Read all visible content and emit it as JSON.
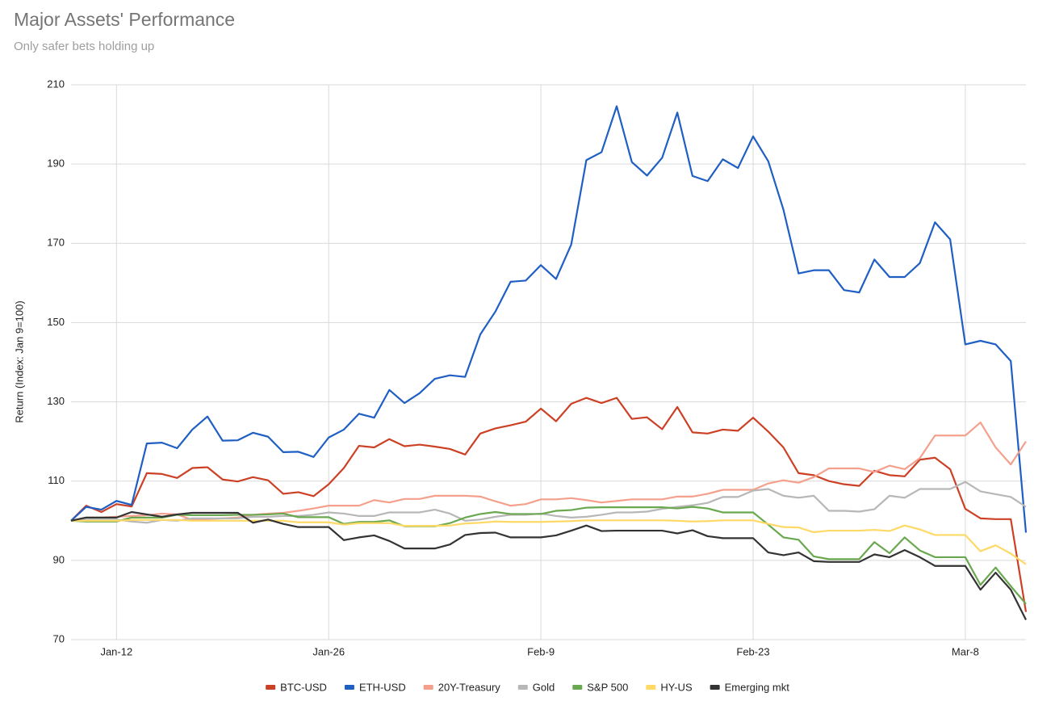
{
  "chart_data": {
    "type": "line",
    "title": "Major Assets' Performance",
    "subtitle": "Only safer bets holding up",
    "y_label": "Return (Index: Jan 9=100)",
    "categories": [
      null,
      null,
      null,
      "Jan-12",
      null,
      null,
      null,
      null,
      null,
      null,
      null,
      null,
      null,
      null,
      null,
      null,
      null,
      "Jan-26",
      null,
      null,
      null,
      null,
      null,
      null,
      null,
      null,
      null,
      null,
      null,
      null,
      null,
      "Feb-9",
      null,
      null,
      null,
      null,
      null,
      null,
      null,
      null,
      null,
      null,
      null,
      null,
      null,
      "Feb-23",
      null,
      null,
      null,
      null,
      null,
      null,
      null,
      null,
      null,
      null,
      null,
      null,
      null,
      "Mar-8",
      null,
      null,
      null,
      null
    ],
    "ylim": [
      70,
      210
    ],
    "yticks": [
      70,
      90,
      110,
      130,
      150,
      170,
      190,
      210
    ],
    "grid": true,
    "legend": "bottom",
    "series": [
      {
        "name": "BTC-USD",
        "color": "#cc4125",
        "values": [
          100,
          103.8,
          102.2,
          104.2,
          103.6,
          112,
          111.8,
          110.8,
          113.3,
          113.5,
          110.4,
          109.9,
          111,
          110.2,
          106.8,
          107.2,
          106.2,
          109.2,
          113.3,
          118.9,
          118.5,
          120.6,
          118.8,
          119.2,
          118.7,
          118.1,
          116.7,
          122,
          123.3,
          124.1,
          125,
          128.3,
          125.1,
          129.5,
          131,
          129.7,
          131,
          125.7,
          126.1,
          123.1,
          128.7,
          122.3,
          122,
          123,
          122.7,
          126,
          122.5,
          118.5,
          112,
          111.5,
          110,
          109.2,
          108.8,
          112.6,
          111.5,
          111.2,
          115.4,
          115.9,
          113,
          103,
          100.6,
          100.4,
          100.4,
          77
        ]
      },
      {
        "name": "ETH-USD",
        "color": "#1f5fc4",
        "values": [
          100,
          103.5,
          102.8,
          105,
          104,
          119.5,
          119.7,
          118.3,
          123,
          126.3,
          120.2,
          120.3,
          122.2,
          121.2,
          117.3,
          117.4,
          116.1,
          121,
          123,
          127,
          126,
          133,
          129.7,
          132.2,
          135.8,
          136.7,
          136.3,
          147,
          152.8,
          160.3,
          160.6,
          164.5,
          161,
          169.7,
          191,
          193,
          204.6,
          190.5,
          187.1,
          191.6,
          203,
          187,
          185.7,
          191.2,
          189,
          197,
          190.7,
          178.5,
          162.4,
          163.2,
          163.2,
          158.2,
          157.6,
          165.9,
          161.5,
          161.5,
          165,
          175.3,
          171,
          144.5,
          145.4,
          144.5,
          140.3,
          97
        ]
      },
      {
        "name": "20Y-Treasury",
        "color": "#f4a08c",
        "values": [
          100,
          100.8,
          100.8,
          101,
          101.2,
          101.4,
          101.8,
          101.6,
          100.2,
          100.4,
          100.6,
          100.8,
          101.5,
          101.8,
          102,
          102.5,
          103.1,
          103.8,
          103.8,
          103.8,
          105.2,
          104.6,
          105.5,
          105.5,
          106.3,
          106.3,
          106.3,
          106.1,
          104.9,
          103.8,
          104.2,
          105.4,
          105.4,
          105.7,
          105.2,
          104.6,
          105,
          105.4,
          105.4,
          105.4,
          106.1,
          106.1,
          106.8,
          107.8,
          107.8,
          107.8,
          109.4,
          110.2,
          109.6,
          111,
          113.2,
          113.2,
          113.2,
          112.3,
          113.9,
          113,
          115.8,
          121.5,
          121.5,
          121.5,
          124.8,
          118.5,
          114.2,
          120
        ]
      },
      {
        "name": "Gold",
        "color": "#b7b7b7",
        "values": [
          100,
          100.3,
          100.3,
          100.3,
          99.8,
          99.5,
          100.2,
          100,
          100.6,
          100.6,
          100.6,
          100.6,
          101,
          101,
          101.2,
          101.2,
          101.5,
          102.1,
          101.8,
          101.2,
          101.2,
          102.1,
          102.1,
          102.1,
          102.8,
          101.8,
          100,
          100.3,
          101,
          101.5,
          101.5,
          101.8,
          101.2,
          100.8,
          101,
          101.5,
          102.1,
          102.1,
          102.3,
          103,
          103.5,
          103.9,
          104.5,
          106,
          106,
          107.6,
          108,
          106.3,
          105.8,
          106.3,
          102.5,
          102.5,
          102.3,
          102.9,
          106.3,
          105.8,
          108,
          108,
          108,
          109.8,
          107.4,
          106.7,
          106,
          103.5
        ]
      },
      {
        "name": "S&P 500",
        "color": "#6aa84f",
        "values": [
          100,
          99.8,
          99.8,
          99.8,
          100.8,
          100.8,
          100.8,
          101.5,
          101.4,
          101.4,
          101.4,
          101.5,
          101.5,
          101.6,
          101.8,
          100.9,
          100.9,
          100.9,
          99.2,
          99.7,
          99.7,
          100.1,
          98.6,
          98.6,
          98.6,
          99.4,
          100.8,
          101.7,
          102.2,
          101.7,
          101.7,
          101.7,
          102.5,
          102.7,
          103.3,
          103.4,
          103.4,
          103.4,
          103.4,
          103.4,
          103.1,
          103.5,
          103.1,
          102.1,
          102.1,
          102.1,
          99,
          95.8,
          95.2,
          91,
          90.3,
          90.3,
          90.3,
          94.6,
          91.8,
          95.8,
          92.5,
          90.8,
          90.8,
          90.8,
          83.8,
          88.2,
          83.5,
          79
        ]
      },
      {
        "name": "HY-US",
        "color": "#ffd966",
        "values": [
          100,
          100,
          100,
          100,
          100.2,
          100.2,
          100.2,
          100.2,
          100,
          100,
          100,
          100,
          100,
          100,
          100,
          99.6,
          99.6,
          99.6,
          99,
          99.4,
          99.4,
          99.4,
          98.7,
          98.7,
          98.7,
          98.8,
          99.3,
          99.5,
          99.8,
          99.7,
          99.7,
          99.7,
          99.8,
          99.9,
          100.1,
          100.1,
          100.1,
          100.1,
          100.1,
          100.1,
          100,
          99.8,
          99.9,
          100.1,
          100.1,
          100.1,
          99.2,
          98.4,
          98.3,
          97.1,
          97.5,
          97.5,
          97.5,
          97.7,
          97.4,
          98.8,
          97.8,
          96.4,
          96.4,
          96.4,
          92.3,
          93.8,
          91.7,
          89
        ]
      },
      {
        "name": "Emerging mkt",
        "color": "#333333",
        "values": [
          100,
          100.8,
          100.8,
          100.8,
          102.2,
          101.6,
          101,
          101.6,
          102,
          102,
          102,
          102,
          99.5,
          100.3,
          99.2,
          98.4,
          98.4,
          98.4,
          95.1,
          95.8,
          96.3,
          94.9,
          93,
          93,
          93,
          94,
          96.4,
          96.9,
          97,
          95.8,
          95.8,
          95.8,
          96.3,
          97.5,
          98.8,
          97.4,
          97.5,
          97.5,
          97.5,
          97.5,
          96.8,
          97.6,
          96.1,
          95.6,
          95.6,
          95.6,
          92,
          91.3,
          92,
          89.8,
          89.6,
          89.6,
          89.6,
          91.5,
          90.8,
          92.6,
          90.8,
          88.6,
          88.6,
          88.6,
          82.6,
          86.9,
          82.6,
          75
        ]
      }
    ]
  }
}
